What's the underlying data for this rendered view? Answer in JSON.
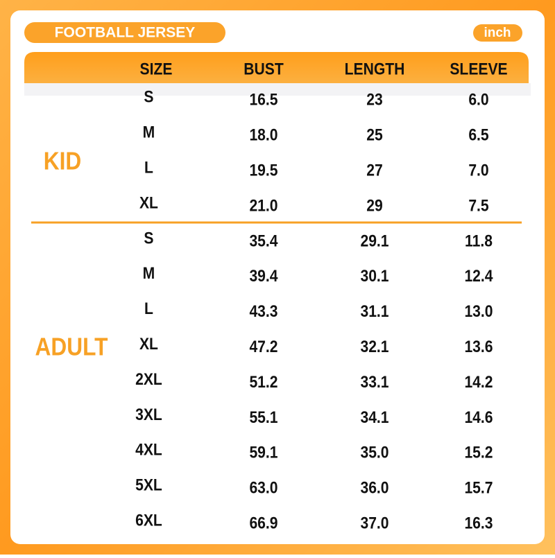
{
  "header": {
    "title": "FOOTBALL JERSEY",
    "unit": "inch"
  },
  "table": {
    "columns": [
      "SIZE",
      "BUST",
      "LENGTH",
      "SLEEVE"
    ],
    "groups": [
      {
        "label": "KID",
        "rows": [
          [
            "S",
            "16.5",
            "23",
            "6.0"
          ],
          [
            "M",
            "18.0",
            "25",
            "6.5"
          ],
          [
            "L",
            "19.5",
            "27",
            "7.0"
          ],
          [
            "XL",
            "21.0",
            "29",
            "7.5"
          ]
        ]
      },
      {
        "label": "ADULT",
        "rows": [
          [
            "S",
            "35.4",
            "29.1",
            "11.8"
          ],
          [
            "M",
            "39.4",
            "30.1",
            "12.4"
          ],
          [
            "L",
            "43.3",
            "31.1",
            "13.0"
          ],
          [
            "XL",
            "47.2",
            "32.1",
            "13.6"
          ],
          [
            "2XL",
            "51.2",
            "33.1",
            "14.2"
          ],
          [
            "3XL",
            "55.1",
            "34.1",
            "14.6"
          ],
          [
            "4XL",
            "59.1",
            "35.0",
            "15.2"
          ],
          [
            "5XL",
            "63.0",
            "36.0",
            "15.7"
          ],
          [
            "6XL",
            "66.9",
            "37.0",
            "16.3"
          ]
        ]
      }
    ]
  }
}
